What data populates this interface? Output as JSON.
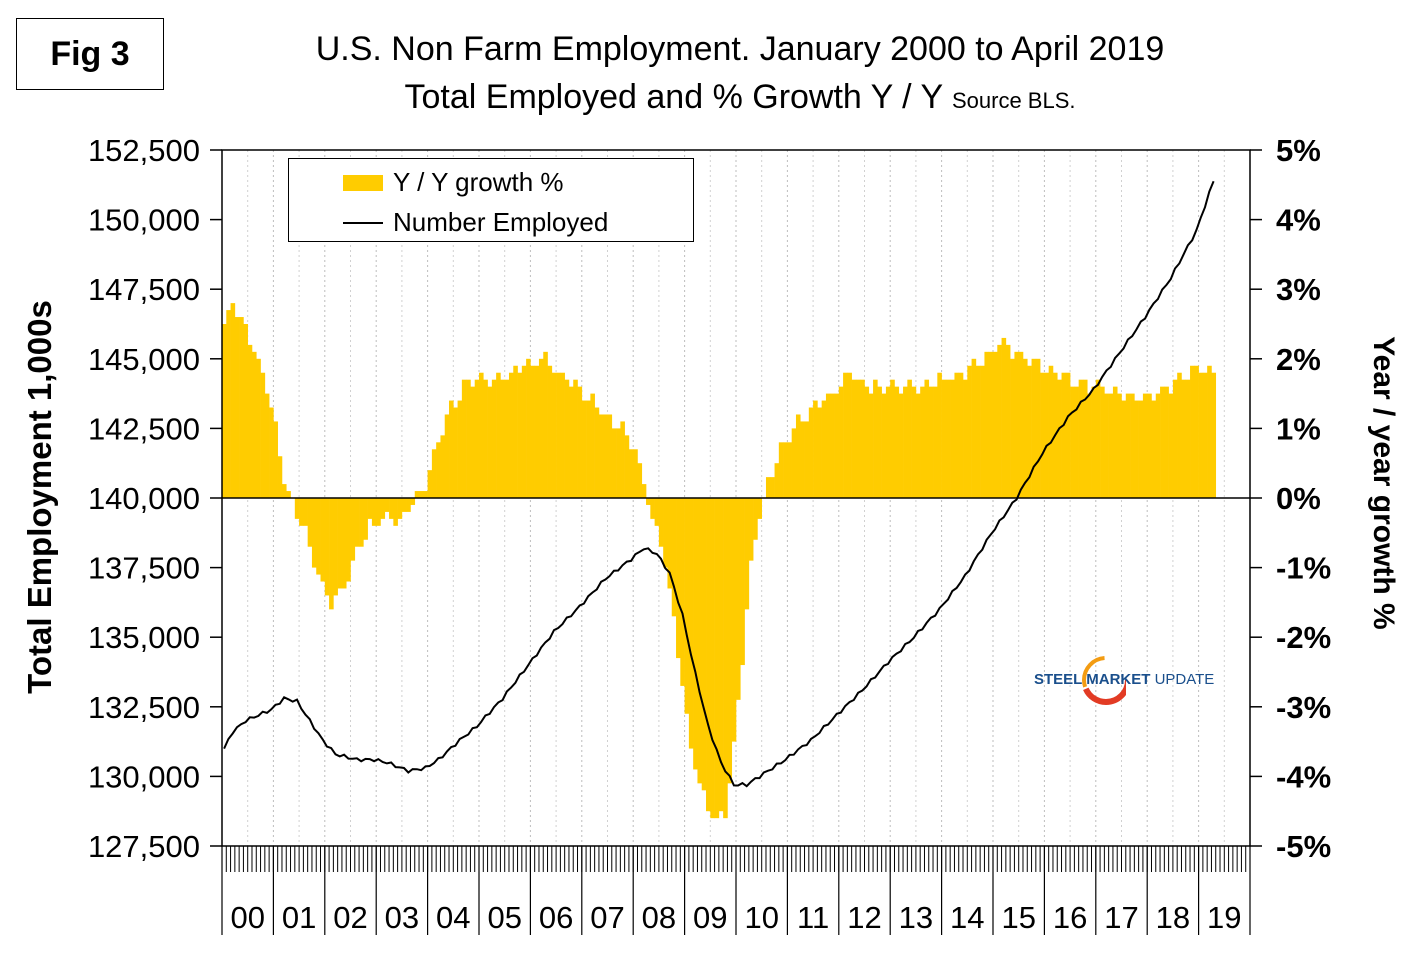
{
  "figure_label": "Fig 3",
  "title_line1": "U.S. Non Farm Employment. January 2000 to April 2019",
  "title_line2": "Total Employed and % Growth Y / Y",
  "title_source": "Source BLS.",
  "logo": {
    "strong": "STEEL MARKET",
    "rest": "UPDATE"
  },
  "colors": {
    "bars": "#FFCC00",
    "line": "#000000",
    "logo_blue": "#1a4f8c",
    "logo_red": "#e23b24"
  },
  "chart_data": {
    "type": "bar+line",
    "x_start": "2000-01",
    "x_end": "2019-04",
    "x_tick_labels": [
      "00",
      "01",
      "02",
      "03",
      "04",
      "05",
      "06",
      "07",
      "08",
      "09",
      "10",
      "11",
      "12",
      "13",
      "14",
      "15",
      "16",
      "17",
      "18",
      "19"
    ],
    "y_left": {
      "label": "Total Employment 1,000s",
      "min": 127500,
      "max": 152500,
      "ticks": [
        127500,
        130000,
        132500,
        135000,
        137500,
        140000,
        142500,
        145000,
        147500,
        150000,
        152500
      ],
      "tick_labels": [
        "127,500",
        "130,000",
        "132,500",
        "135,000",
        "137,500",
        "140,000",
        "142,500",
        "145,000",
        "147,500",
        "150,000",
        "152,500"
      ]
    },
    "y_right": {
      "label": "Year / year growth %",
      "min": -5,
      "max": 5,
      "ticks": [
        -5,
        -4,
        -3,
        -2,
        -1,
        0,
        1,
        2,
        3,
        4,
        5
      ],
      "tick_labels": [
        "-5%",
        "-4%",
        "-3%",
        "-2%",
        "-1%",
        "0%",
        "1%",
        "2%",
        "3%",
        "4%",
        "5%"
      ]
    },
    "grid": "vertical-dotted",
    "legend_position": "top-left",
    "series": [
      {
        "name": "Y / Y growth %",
        "kind": "bar",
        "axis": "right",
        "keypoints": [
          [
            "2000-01",
            2.5
          ],
          [
            "2000-03",
            2.8
          ],
          [
            "2000-07",
            2.3
          ],
          [
            "2000-10",
            1.8
          ],
          [
            "2001-01",
            1.0
          ],
          [
            "2001-03",
            0.3
          ],
          [
            "2001-05",
            -0.1
          ],
          [
            "2001-08",
            -0.5
          ],
          [
            "2001-11",
            -1.1
          ],
          [
            "2002-02",
            -1.5
          ],
          [
            "2002-05",
            -1.3
          ],
          [
            "2002-08",
            -0.8
          ],
          [
            "2002-11",
            -0.4
          ],
          [
            "2003-02",
            -0.3
          ],
          [
            "2003-06",
            -0.3
          ],
          [
            "2003-09",
            -0.1
          ],
          [
            "2003-12",
            0.2
          ],
          [
            "2004-03",
            0.8
          ],
          [
            "2004-06",
            1.3
          ],
          [
            "2004-09",
            1.6
          ],
          [
            "2005-01",
            1.7
          ],
          [
            "2005-06",
            1.7
          ],
          [
            "2005-11",
            1.9
          ],
          [
            "2006-04",
            2.0
          ],
          [
            "2006-07",
            1.8
          ],
          [
            "2006-12",
            1.6
          ],
          [
            "2007-04",
            1.3
          ],
          [
            "2007-07",
            1.1
          ],
          [
            "2007-10",
            1.0
          ],
          [
            "2008-01",
            0.7
          ],
          [
            "2008-03",
            0.2
          ],
          [
            "2008-05",
            -0.3
          ],
          [
            "2008-08",
            -0.9
          ],
          [
            "2008-11",
            -2.2
          ],
          [
            "2009-02",
            -3.6
          ],
          [
            "2009-05",
            -4.3
          ],
          [
            "2009-08",
            -4.7
          ],
          [
            "2009-10",
            -4.5
          ],
          [
            "2009-12",
            -3.6
          ],
          [
            "2010-02",
            -2.3
          ],
          [
            "2010-04",
            -1.0
          ],
          [
            "2010-06",
            -0.2
          ],
          [
            "2010-08",
            0.2
          ],
          [
            "2010-11",
            0.7
          ],
          [
            "2011-02",
            1.0
          ],
          [
            "2011-06",
            1.3
          ],
          [
            "2011-11",
            1.5
          ],
          [
            "2012-03",
            1.8
          ],
          [
            "2012-06",
            1.6
          ],
          [
            "2012-10",
            1.6
          ],
          [
            "2013-03",
            1.6
          ],
          [
            "2013-08",
            1.6
          ],
          [
            "2013-12",
            1.7
          ],
          [
            "2014-06",
            1.8
          ],
          [
            "2014-12",
            2.1
          ],
          [
            "2015-03",
            2.2
          ],
          [
            "2015-08",
            2.0
          ],
          [
            "2015-12",
            1.9
          ],
          [
            "2016-04",
            1.8
          ],
          [
            "2016-09",
            1.6
          ],
          [
            "2017-01",
            1.6
          ],
          [
            "2017-06",
            1.5
          ],
          [
            "2017-09",
            1.4
          ],
          [
            "2018-01",
            1.5
          ],
          [
            "2018-06",
            1.6
          ],
          [
            "2018-12",
            1.9
          ],
          [
            "2019-04",
            1.8
          ]
        ]
      },
      {
        "name": "Number Employed",
        "kind": "line",
        "axis": "left",
        "keypoints": [
          [
            "2000-01",
            131000
          ],
          [
            "2000-03",
            131600
          ],
          [
            "2000-06",
            132000
          ],
          [
            "2000-12",
            132400
          ],
          [
            "2001-03",
            132800
          ],
          [
            "2001-06",
            132700
          ],
          [
            "2001-09",
            132000
          ],
          [
            "2001-12",
            131300
          ],
          [
            "2002-03",
            130800
          ],
          [
            "2002-08",
            130600
          ],
          [
            "2002-12",
            130600
          ],
          [
            "2003-03",
            130500
          ],
          [
            "2003-08",
            130200
          ],
          [
            "2003-12",
            130300
          ],
          [
            "2004-03",
            130600
          ],
          [
            "2004-08",
            131300
          ],
          [
            "2004-12",
            131800
          ],
          [
            "2005-06",
            132800
          ],
          [
            "2005-12",
            134000
          ],
          [
            "2006-06",
            135200
          ],
          [
            "2006-12",
            136100
          ],
          [
            "2007-06",
            137100
          ],
          [
            "2007-12",
            137800
          ],
          [
            "2008-03",
            138200
          ],
          [
            "2008-06",
            138000
          ],
          [
            "2008-09",
            137300
          ],
          [
            "2008-12",
            135800
          ],
          [
            "2009-03",
            133700
          ],
          [
            "2009-06",
            131800
          ],
          [
            "2009-09",
            130500
          ],
          [
            "2009-12",
            129700
          ],
          [
            "2010-03",
            129700
          ],
          [
            "2010-06",
            130000
          ],
          [
            "2010-12",
            130600
          ],
          [
            "2011-06",
            131300
          ],
          [
            "2011-12",
            132200
          ],
          [
            "2012-06",
            133100
          ],
          [
            "2012-12",
            134100
          ],
          [
            "2013-06",
            135000
          ],
          [
            "2013-12",
            136000
          ],
          [
            "2014-06",
            137200
          ],
          [
            "2014-12",
            138700
          ],
          [
            "2015-06",
            140000
          ],
          [
            "2015-12",
            141600
          ],
          [
            "2016-06",
            142900
          ],
          [
            "2016-12",
            143900
          ],
          [
            "2017-06",
            145200
          ],
          [
            "2017-12",
            146500
          ],
          [
            "2018-06",
            147900
          ],
          [
            "2018-12",
            149600
          ],
          [
            "2019-04",
            151400
          ]
        ]
      }
    ]
  }
}
